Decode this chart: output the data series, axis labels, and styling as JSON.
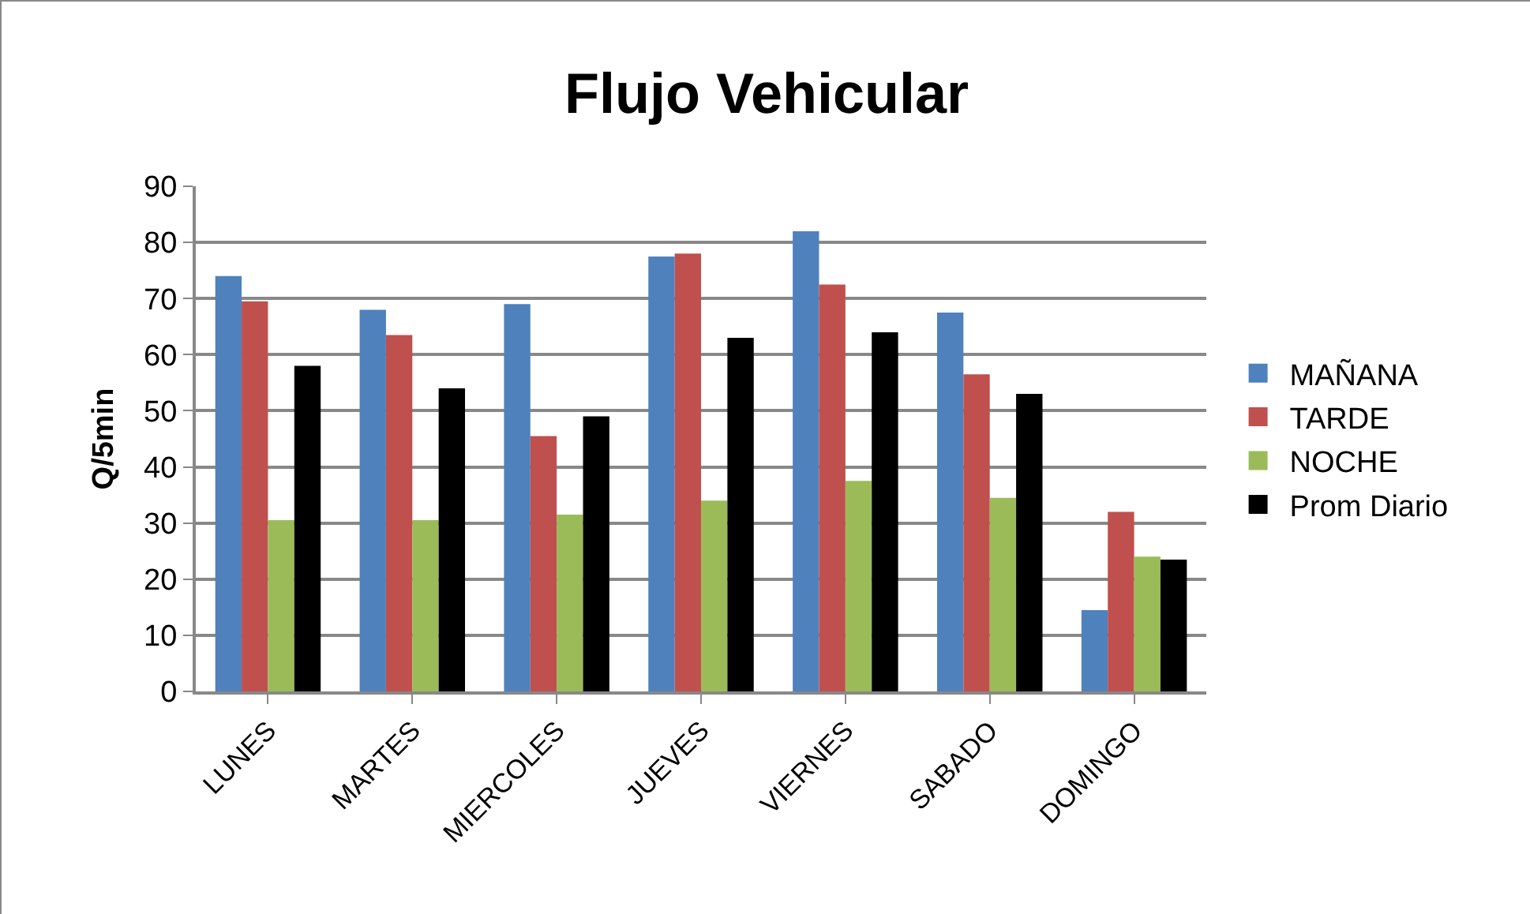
{
  "chart_data": {
    "type": "bar",
    "title": "Flujo Vehicular",
    "ylabel": "Q/5min",
    "categories": [
      "LUNES",
      "MARTES",
      "MIERCOLES",
      "JUEVES",
      "VIERNES",
      "SABADO",
      "DOMINGO"
    ],
    "series": [
      {
        "name": "MAÑANA",
        "color": "#4f81bd",
        "values": [
          74,
          68,
          69,
          77.5,
          82,
          67.5,
          14.5
        ]
      },
      {
        "name": "TARDE",
        "color": "#c0504d",
        "values": [
          69.5,
          63.5,
          45.5,
          78,
          72.5,
          56.5,
          32
        ]
      },
      {
        "name": "NOCHE",
        "color": "#9bbb59",
        "values": [
          30.5,
          30.5,
          31.5,
          34,
          37.5,
          34.5,
          24
        ]
      },
      {
        "name": "Prom Diario",
        "color": "#000000",
        "values": [
          58,
          54,
          49,
          63,
          64,
          53,
          23.5
        ]
      }
    ],
    "ylim": [
      0,
      90
    ],
    "yticks": [
      0,
      10,
      20,
      30,
      40,
      50,
      60,
      70,
      80,
      90
    ],
    "grid": "y",
    "legend": "right"
  }
}
